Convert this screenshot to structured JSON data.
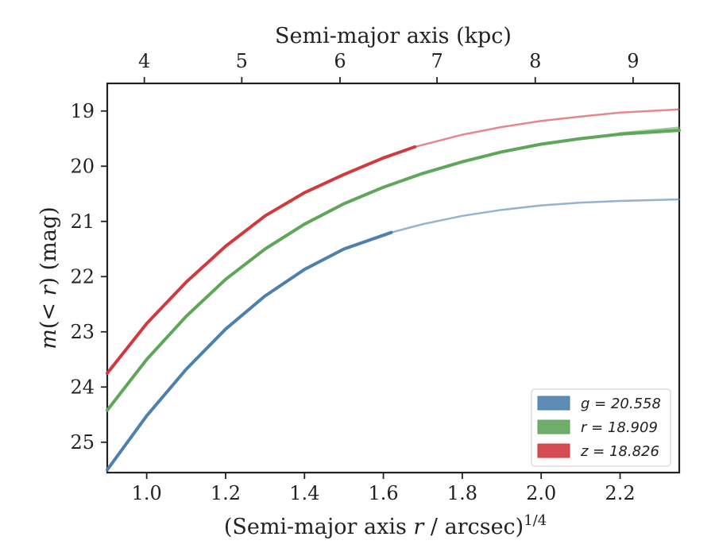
{
  "chart_data": {
    "type": "line",
    "xlabel_bottom": "(Semi-major axis r / arcsec)",
    "xlabel_bottom_exponent": "1/4",
    "xlabel_top": "Semi-major axis (kpc)",
    "ylabel": "m(< r) (mag)",
    "xlim": [
      0.9,
      2.35
    ],
    "ylim": [
      25.55,
      18.5
    ],
    "y_inverted": true,
    "x_ticks_bottom": [
      1.0,
      1.2,
      1.4,
      1.6,
      1.8,
      2.0,
      2.2
    ],
    "x_tick_labels_bottom": [
      "1.0",
      "1.2",
      "1.4",
      "1.6",
      "1.8",
      "2.0",
      "2.2"
    ],
    "x_ticks_top_position": [
      0.994,
      1.241,
      1.49,
      1.736,
      1.985,
      2.233
    ],
    "x_tick_labels_top": [
      "4",
      "5",
      "6",
      "7",
      "8",
      "9"
    ],
    "y_ticks": [
      19,
      20,
      21,
      22,
      23,
      24,
      25
    ],
    "y_tick_labels": [
      "19",
      "20",
      "21",
      "22",
      "23",
      "24",
      "25"
    ],
    "grid": false,
    "legend_position": "bottom-right",
    "series": [
      {
        "name": "g",
        "legend_label": "g = 20.558",
        "color": "#4e7fad",
        "solid_x": [
          0.9,
          1.0,
          1.1,
          1.2,
          1.3,
          1.4,
          1.5,
          1.62
        ],
        "solid_y": [
          25.5,
          24.52,
          23.68,
          22.95,
          22.35,
          21.87,
          21.5,
          21.2
        ],
        "faint_x": [
          1.62,
          1.7,
          1.8,
          1.9,
          2.0,
          2.1,
          2.2,
          2.35
        ],
        "faint_y": [
          21.2,
          21.05,
          20.9,
          20.79,
          20.71,
          20.66,
          20.63,
          20.6
        ]
      },
      {
        "name": "r",
        "legend_label": "r = 18.909",
        "color": "#5fa55a",
        "solid_x": [
          0.9,
          1.0,
          1.1,
          1.2,
          1.3,
          1.4,
          1.5,
          1.6,
          1.7,
          1.8,
          1.9,
          2.0,
          2.1,
          2.2,
          2.35
        ],
        "solid_y": [
          24.42,
          23.5,
          22.72,
          22.05,
          21.5,
          21.05,
          20.68,
          20.38,
          20.13,
          19.92,
          19.74,
          19.6,
          19.5,
          19.42,
          19.35
        ],
        "faint_x": [
          2.2,
          2.35
        ],
        "faint_y": [
          19.4,
          19.3
        ]
      },
      {
        "name": "z",
        "legend_label": "z = 18.826",
        "color": "#d03a3f",
        "solid_x": [
          0.9,
          1.0,
          1.1,
          1.2,
          1.3,
          1.4,
          1.5,
          1.6,
          1.68
        ],
        "solid_y": [
          23.75,
          22.85,
          22.1,
          21.45,
          20.9,
          20.48,
          20.15,
          19.85,
          19.65
        ],
        "faint_x": [
          1.68,
          1.8,
          1.9,
          2.0,
          2.1,
          2.2,
          2.35
        ],
        "faint_y": [
          19.65,
          19.43,
          19.29,
          19.18,
          19.1,
          19.03,
          18.97
        ]
      }
    ]
  }
}
